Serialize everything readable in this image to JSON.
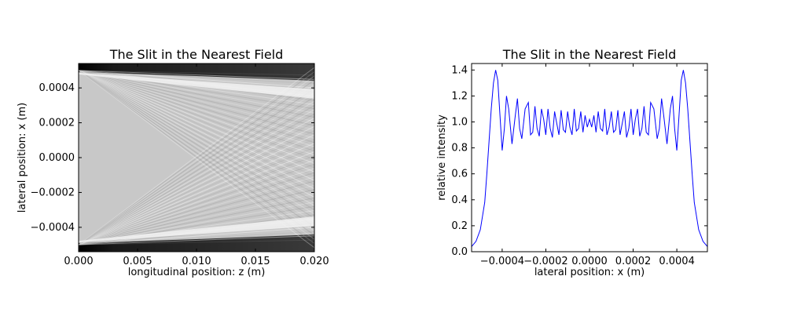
{
  "chart_data": [
    {
      "type": "heatmap",
      "title": "The Slit in the Nearest Field",
      "xlabel": "longitudinal position: z (m)",
      "ylabel": "lateral position: x (m)",
      "xlim": [
        0.0,
        0.02
      ],
      "ylim": [
        -0.00054,
        0.00054
      ],
      "xticks": [
        "0.000",
        "0.005",
        "0.010",
        "0.015",
        "0.020"
      ],
      "xtick_values": [
        0.0,
        0.005,
        0.01,
        0.015,
        0.02
      ],
      "yticks": [
        "0.0004",
        "0.0002",
        "0.0000",
        "−0.0002",
        "−0.0004"
      ],
      "ytick_values": [
        0.0004,
        0.0002,
        0.0,
        -0.0002,
        -0.0004
      ],
      "slit_half_width": 0.0005,
      "colormap": "gray",
      "grid": false
    },
    {
      "type": "line",
      "title": "The Slit in the Nearest Field",
      "xlabel": "lateral position: x (m)",
      "ylabel": "relative intensity",
      "xlim": [
        -0.00054,
        0.00054
      ],
      "ylim": [
        0.0,
        1.45
      ],
      "xticks": [
        "−0.0004",
        "−0.0002",
        "0.0000",
        "0.0002",
        "0.0004"
      ],
      "xtick_values": [
        -0.0004,
        -0.0002,
        0.0,
        0.0002,
        0.0004
      ],
      "yticks": [
        "0.0",
        "0.2",
        "0.4",
        "0.6",
        "0.8",
        "1.0",
        "1.2",
        "1.4"
      ],
      "ytick_values": [
        0.0,
        0.2,
        0.4,
        0.6,
        0.8,
        1.0,
        1.2,
        1.4
      ],
      "line_color": "#0000ff",
      "grid": false,
      "series": [
        {
          "x": [
            -0.00054,
            -0.00052,
            -0.0005,
            -0.00048,
            -0.00047,
            -0.00046,
            -0.00045,
            -0.00044,
            -0.00043,
            -0.00042,
            -0.00041,
            -0.0004,
            -0.00039,
            -0.00038,
            -0.00037,
            -0.000355,
            -0.00034,
            -0.00033,
            -0.00032,
            -0.00031,
            -0.000295,
            -0.00028,
            -0.00027,
            -0.00026,
            -0.00025,
            -0.00024,
            -0.00023,
            -0.00022,
            -0.00021,
            -0.0002,
            -0.00019,
            -0.00018,
            -0.00017,
            -0.00016,
            -0.00015,
            -0.00014,
            -0.00013,
            -0.00012,
            -0.00011,
            -0.0001,
            -9e-05,
            -8e-05,
            -7e-05,
            -6e-05,
            -5e-05,
            -4e-05,
            -3e-05,
            -2e-05,
            -1e-05,
            0.0,
            1e-05,
            2e-05,
            3e-05,
            4e-05,
            5e-05,
            6e-05,
            7e-05,
            8e-05,
            9e-05,
            0.0001,
            0.00011,
            0.00012,
            0.00013,
            0.00014,
            0.00015,
            0.00016,
            0.00017,
            0.00018,
            0.00019,
            0.0002,
            0.00021,
            0.00022,
            0.00023,
            0.00024,
            0.00025,
            0.00026,
            0.00027,
            0.00028,
            0.000295,
            0.00031,
            0.00032,
            0.00033,
            0.00034,
            0.000355,
            0.00037,
            0.00038,
            0.00039,
            0.0004,
            0.00041,
            0.00042,
            0.00043,
            0.00044,
            0.00045,
            0.00046,
            0.00047,
            0.00048,
            0.0005,
            0.00052,
            0.00054
          ],
          "y": [
            0.04,
            0.08,
            0.17,
            0.38,
            0.6,
            0.85,
            1.1,
            1.3,
            1.4,
            1.32,
            1.05,
            0.78,
            0.95,
            1.2,
            1.1,
            0.83,
            1.05,
            1.18,
            0.95,
            0.87,
            1.1,
            1.15,
            0.9,
            0.92,
            1.12,
            0.95,
            0.89,
            1.1,
            1.02,
            0.9,
            1.1,
            0.95,
            0.88,
            1.08,
            0.99,
            0.9,
            1.09,
            0.94,
            0.92,
            1.08,
            0.96,
            0.9,
            1.1,
            0.93,
            0.95,
            1.08,
            0.92,
            1.05,
            0.96,
            1.02,
            0.96,
            1.05,
            0.92,
            1.08,
            0.95,
            0.93,
            1.1,
            0.9,
            0.96,
            1.08,
            0.92,
            0.94,
            1.09,
            0.9,
            0.99,
            1.08,
            0.88,
            0.95,
            1.1,
            0.9,
            1.02,
            1.1,
            0.89,
            0.95,
            1.12,
            0.92,
            0.9,
            1.15,
            1.1,
            0.87,
            0.95,
            1.18,
            1.05,
            0.83,
            1.1,
            1.2,
            0.95,
            0.78,
            1.05,
            1.32,
            1.4,
            1.3,
            1.1,
            0.85,
            0.6,
            0.38,
            0.17,
            0.08,
            0.04
          ]
        }
      ]
    }
  ]
}
